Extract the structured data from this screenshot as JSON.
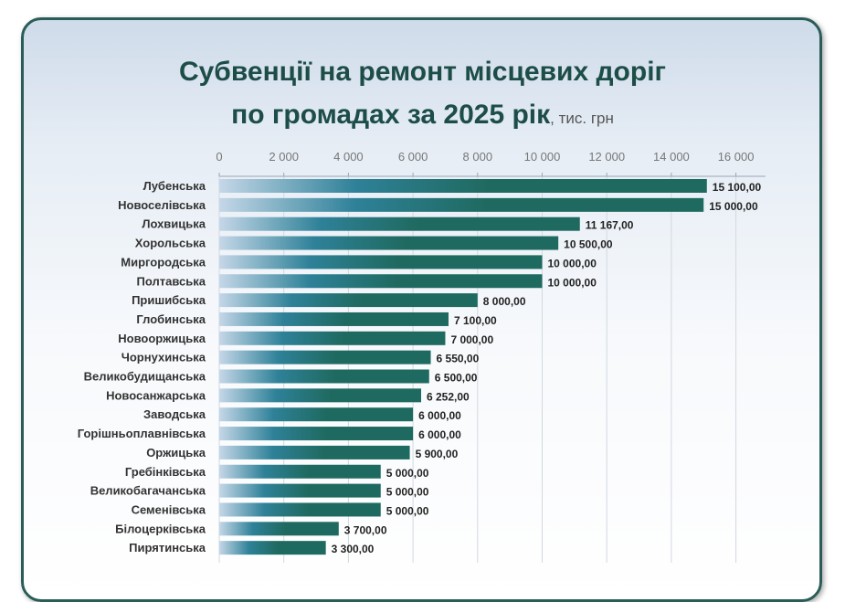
{
  "chart_data": {
    "type": "bar",
    "orientation": "horizontal",
    "title": "Субвенції на ремонт місцевих доріг",
    "subtitle": "по громадах за 2025 рік",
    "unit": ", тис. грн",
    "xlim": [
      0,
      16000
    ],
    "ticks": [
      "0",
      "2 000",
      "4 000",
      "6 000",
      "8 000",
      "10 000",
      "12 000",
      "14 000",
      "16 000"
    ],
    "tick_values": [
      0,
      2000,
      4000,
      6000,
      8000,
      10000,
      12000,
      14000,
      16000
    ],
    "grid": true,
    "colors": {
      "bar_dark": "#1f6a60",
      "bar_light": "#c5d7e8",
      "title": "#1d4d47",
      "border": "#2a5d57"
    },
    "categories": [
      "Лубенська",
      "Новоселівська",
      "Лохвицька",
      "Хорольська",
      "Миргородська",
      "Полтавська",
      "Пришибська",
      "Глобинська",
      "Новооржицька",
      "Чорнухинська",
      "Великобудищанська",
      "Новосанжарська",
      "Заводська",
      "Горішньоплавнівська",
      "Оржицька",
      "Гребінківська",
      "Великобагачанська",
      "Семенівська",
      "Білоцерківська",
      "Пирятинська"
    ],
    "values": [
      15100,
      15000,
      11167,
      10500,
      10000,
      10000,
      8000,
      7100,
      7000,
      6550,
      6500,
      6252,
      6000,
      6000,
      5900,
      5000,
      5000,
      5000,
      3700,
      3300
    ],
    "value_labels": [
      "15 100,00",
      "15 000,00",
      "11 167,00",
      "10 500,00",
      "10 000,00",
      "10 000,00",
      "8 000,00",
      "7 100,00",
      "7 000,00",
      "6 550,00",
      "6 500,00",
      "6 252,00",
      "6 000,00",
      "6 000,00",
      "5 900,00",
      "5 000,00",
      "5 000,00",
      "5 000,00",
      "3 700,00",
      "3 300,00"
    ]
  }
}
